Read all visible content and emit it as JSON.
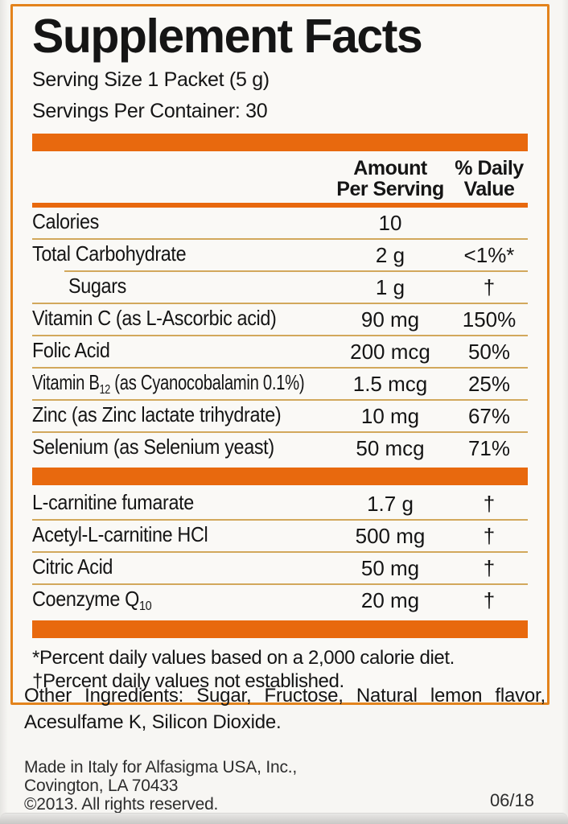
{
  "colors": {
    "accent_orange": "#e8690e",
    "border_orange": "#e3831c",
    "separator_gold": "#d2a85c"
  },
  "panel": {
    "title": "Supplement Facts",
    "serving_size": "Serving Size 1 Packet (5 g)",
    "servings_per_container": "Servings Per Container: 30",
    "header": {
      "amount": [
        "Amount",
        "Per Serving"
      ],
      "daily_value": [
        "% Daily",
        "Value"
      ]
    },
    "rows": [
      {
        "pre": "Calories",
        "sub": "",
        "post": "",
        "amount": "10",
        "dv": ""
      },
      {
        "pre": "Total Carbohydrate",
        "sub": "",
        "post": "",
        "amount": "2 g",
        "dv": "<1%*"
      },
      {
        "pre": "Sugars",
        "sub": "",
        "post": "",
        "amount": "1 g",
        "dv": "†"
      },
      {
        "pre": "Vitamin C (as L-Ascorbic acid)",
        "sub": "",
        "post": "",
        "amount": "90 mg",
        "dv": "150%"
      },
      {
        "pre": "Folic Acid",
        "sub": "",
        "post": "",
        "amount": "200 mcg",
        "dv": "50%"
      },
      {
        "pre": "Vitamin B",
        "sub": "12",
        "post": " (as Cyanocobalamin 0.1%)",
        "amount": "1.5 mcg",
        "dv": "25%"
      },
      {
        "pre": "Zinc (as Zinc lactate trihydrate)",
        "sub": "",
        "post": "",
        "amount": "10 mg",
        "dv": "67%"
      },
      {
        "pre": "Selenium (as Selenium yeast)",
        "sub": "",
        "post": "",
        "amount": "50 mcg",
        "dv": "71%"
      }
    ],
    "rows2": [
      {
        "pre": "L-carnitine fumarate",
        "sub": "",
        "post": "",
        "amount": "1.7 g",
        "dv": "†"
      },
      {
        "pre": "Acetyl-L-carnitine HCl",
        "sub": "",
        "post": "",
        "amount": "500 mg",
        "dv": "†"
      },
      {
        "pre": "Citric Acid",
        "sub": "",
        "post": "",
        "amount": "50 mg",
        "dv": "†"
      },
      {
        "pre": "Coenzyme Q",
        "sub": "10",
        "post": "",
        "amount": "20 mg",
        "dv": "†"
      }
    ],
    "footnotes": [
      "*Percent daily values based on a 2,000 calorie diet.",
      "†Percent daily values not established."
    ]
  },
  "other_ingredients": "Other Ingredients: Sugar, Fructose, Natural lemon flavor, Acesulfame K, Silicon Dioxide.",
  "manufacturer": {
    "line1": "Made in Italy for Alfasigma USA, Inc.,",
    "line2": "Covington, LA 70433",
    "line3": "©2013. All rights reserved."
  },
  "date_code": "06/18"
}
